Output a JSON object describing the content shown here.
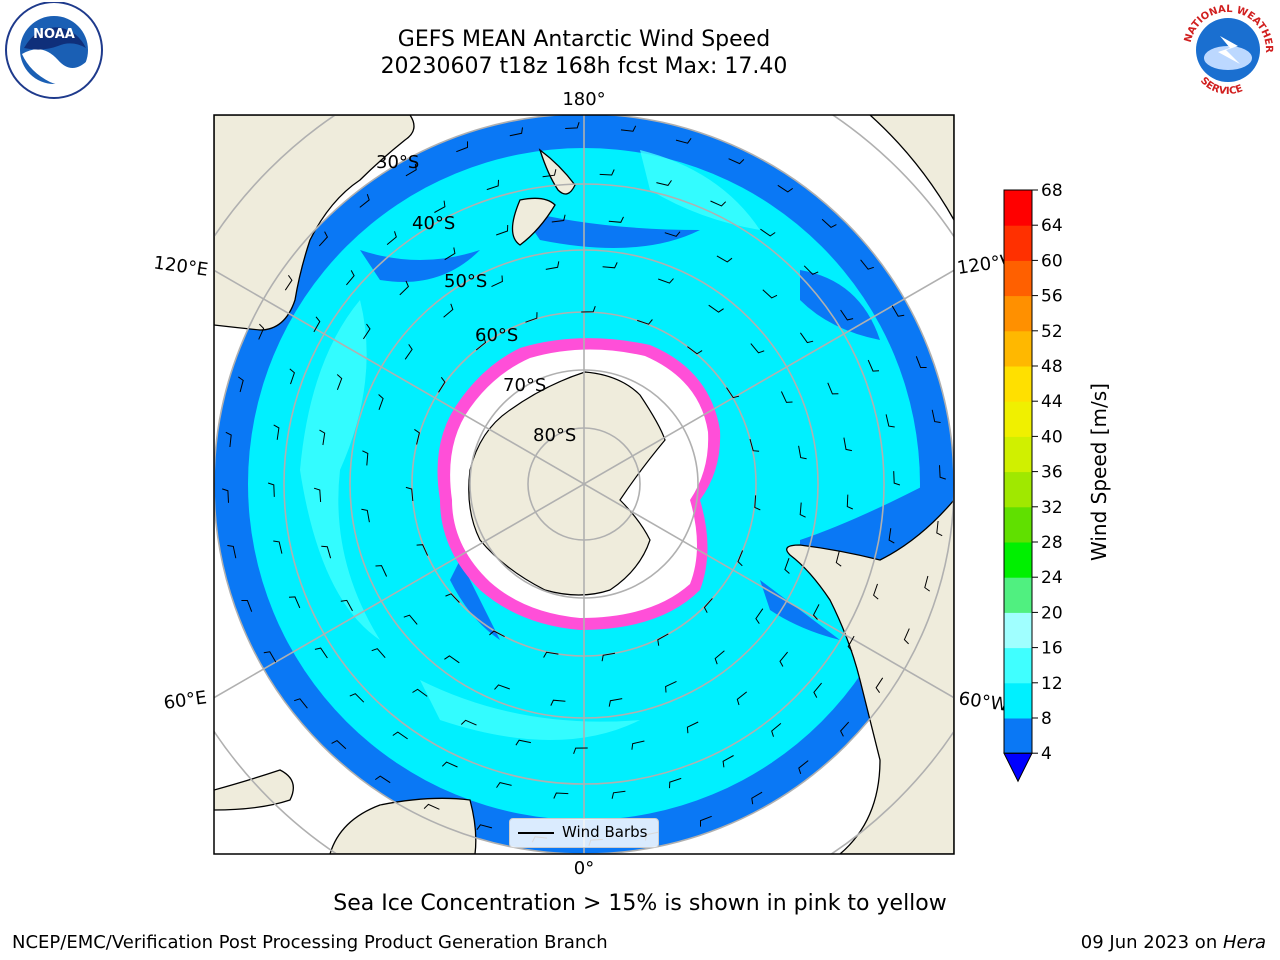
{
  "header": {
    "title_line1": "GEFS MEAN Antarctic Wind Speed",
    "title_line2": "20230607 t18z 168h fcst   Max: 17.40"
  },
  "map": {
    "longitude_labels": {
      "top": "180°",
      "bottom": "0°",
      "left_upper": "120°E",
      "left_lower": "60°E",
      "right_upper": "120°W",
      "right_lower": "60°W"
    },
    "latitude_labels": [
      "30°S",
      "40°S",
      "50°S",
      "60°S",
      "70°S",
      "80°S"
    ],
    "legend": {
      "label": "Wind Barbs"
    }
  },
  "colorbar": {
    "label": "Wind Speed [m/s]",
    "ticks": [
      "4",
      "8",
      "12",
      "16",
      "20",
      "24",
      "28",
      "32",
      "36",
      "40",
      "44",
      "48",
      "52",
      "56",
      "60",
      "64",
      "68"
    ],
    "colors": [
      "#0a78f5",
      "#00f0ff",
      "#40ffff",
      "#a0ffff",
      "#50f080",
      "#00f000",
      "#60e000",
      "#a0e800",
      "#d0f000",
      "#f0f000",
      "#ffe000",
      "#ffb800",
      "#ff9000",
      "#ff6000",
      "#ff3000",
      "#ff0000"
    ],
    "extend_color": "#0000ff"
  },
  "caption": "Sea Ice Concentration > 15% is shown in pink to yellow",
  "footer": {
    "left": "NCEP/EMC/Verification Post Processing Product Generation Branch",
    "right_date": "09 Jun 2023 on ",
    "right_host": "Hera"
  },
  "logos": {
    "left": "NOAA",
    "right_top": "NATIONAL WEATHER",
    "right_bottom": "SERVICE"
  }
}
